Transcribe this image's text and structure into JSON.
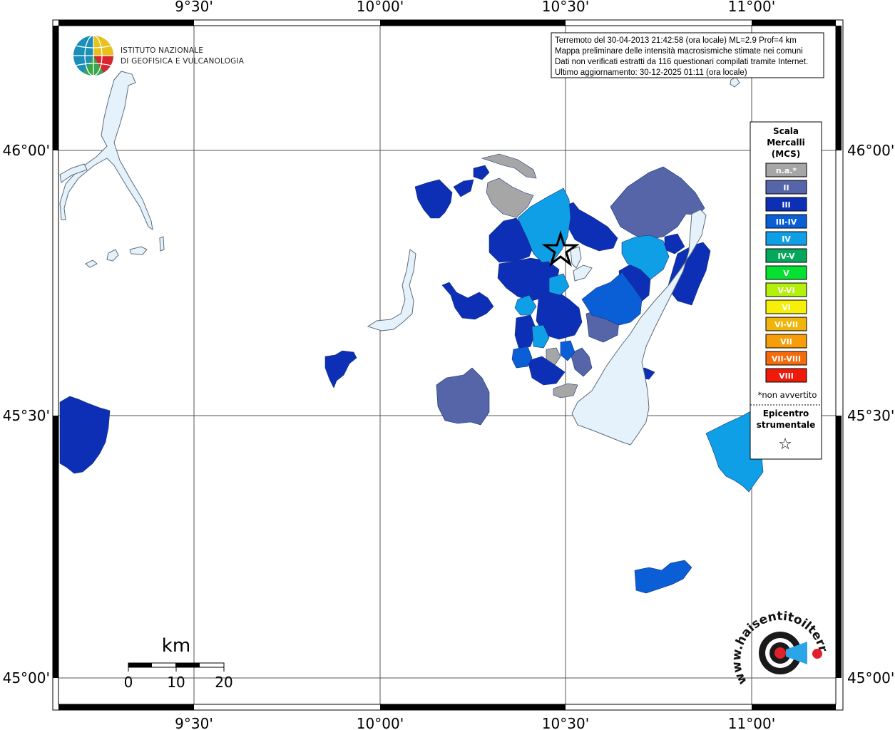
{
  "map": {
    "ticks_lon": [
      "9°30'",
      "10°00'",
      "10°30'",
      "11°00'"
    ],
    "ticks_lat": [
      "46°00'",
      "45°30'",
      "45°00'"
    ]
  },
  "info_box": {
    "lines": [
      "Terremoto del 30-04-2013 21:42:58 (ora locale) ML=2.9 Prof=4 km",
      "Mappa preliminare delle intensità macrosismiche stimate nei comuni",
      "Dati non verificati estratti da 116 questionari compilati tramite Internet.",
      "Ultimo aggiornamento: 30-12-2025 01:11 (ora locale)"
    ]
  },
  "ingv_logo": {
    "line1": "ISTITUTO NAZIONALE",
    "line2": "DI GEOFISICA E VULCANOLOGIA"
  },
  "legend": {
    "title_lines": [
      "Scala",
      "Mercalli",
      "(MCS)"
    ],
    "classes": [
      {
        "label": "n.a.*",
        "color": "#a6a6a6"
      },
      {
        "label": "II",
        "color": "#5565a8"
      },
      {
        "label": "III",
        "color": "#0d2fb5"
      },
      {
        "label": "III-IV",
        "color": "#0a5fd6"
      },
      {
        "label": "IV",
        "color": "#0f9fe6"
      },
      {
        "label": "IV-V",
        "color": "#05a85a"
      },
      {
        "label": "V",
        "color": "#05e032"
      },
      {
        "label": "V-VI",
        "color": "#b3f00a"
      },
      {
        "label": "VI",
        "color": "#f5ef0a"
      },
      {
        "label": "VI-VII",
        "color": "#f0b40a"
      },
      {
        "label": "VII",
        "color": "#f59e0a"
      },
      {
        "label": "VII-VIII",
        "color": "#f56a0a"
      },
      {
        "label": "VIII",
        "color": "#f01a0a"
      }
    ],
    "note": "*non avvertito",
    "epicenter_lines": [
      "Epicentro",
      "strumentale"
    ],
    "epicenter_symbol": "☆"
  },
  "scale_bar": {
    "unit": "km",
    "labels": [
      "0",
      "10",
      "20"
    ]
  },
  "hst_logo": {
    "text": "www.haisentitoilterremoto.it"
  }
}
